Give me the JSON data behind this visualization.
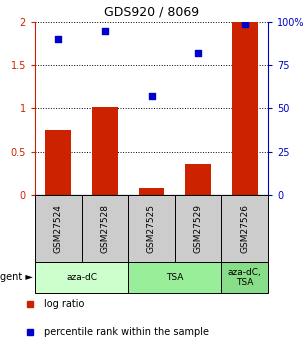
{
  "title": "GDS920 / 8069",
  "samples": [
    "GSM27524",
    "GSM27528",
    "GSM27525",
    "GSM27529",
    "GSM27526"
  ],
  "log_ratio": [
    0.75,
    1.02,
    0.08,
    0.36,
    2.0
  ],
  "percentile_rank": [
    90,
    95,
    57,
    82,
    99
  ],
  "bar_color": "#cc2200",
  "dot_color": "#0000cc",
  "ylim_left": [
    0,
    2
  ],
  "ylim_right": [
    0,
    100
  ],
  "yticks_left": [
    0,
    0.5,
    1.0,
    1.5,
    2
  ],
  "yticks_right": [
    0,
    25,
    50,
    75,
    100
  ],
  "ytick_labels_left": [
    "0",
    "0.5",
    "1",
    "1.5",
    "2"
  ],
  "ytick_labels_right": [
    "0",
    "25",
    "50",
    "75",
    "100%"
  ],
  "agent_groups": [
    {
      "label": "aza-dC",
      "start": 0,
      "end": 2,
      "color": "#ccffcc"
    },
    {
      "label": "TSA",
      "start": 2,
      "end": 4,
      "color": "#99ee99"
    },
    {
      "label": "aza-dC,\nTSA",
      "start": 4,
      "end": 5,
      "color": "#88dd88"
    }
  ],
  "legend_bar_label": "log ratio",
  "legend_dot_label": "percentile rank within the sample",
  "background_color": "#ffffff",
  "label_area_color": "#cccccc"
}
